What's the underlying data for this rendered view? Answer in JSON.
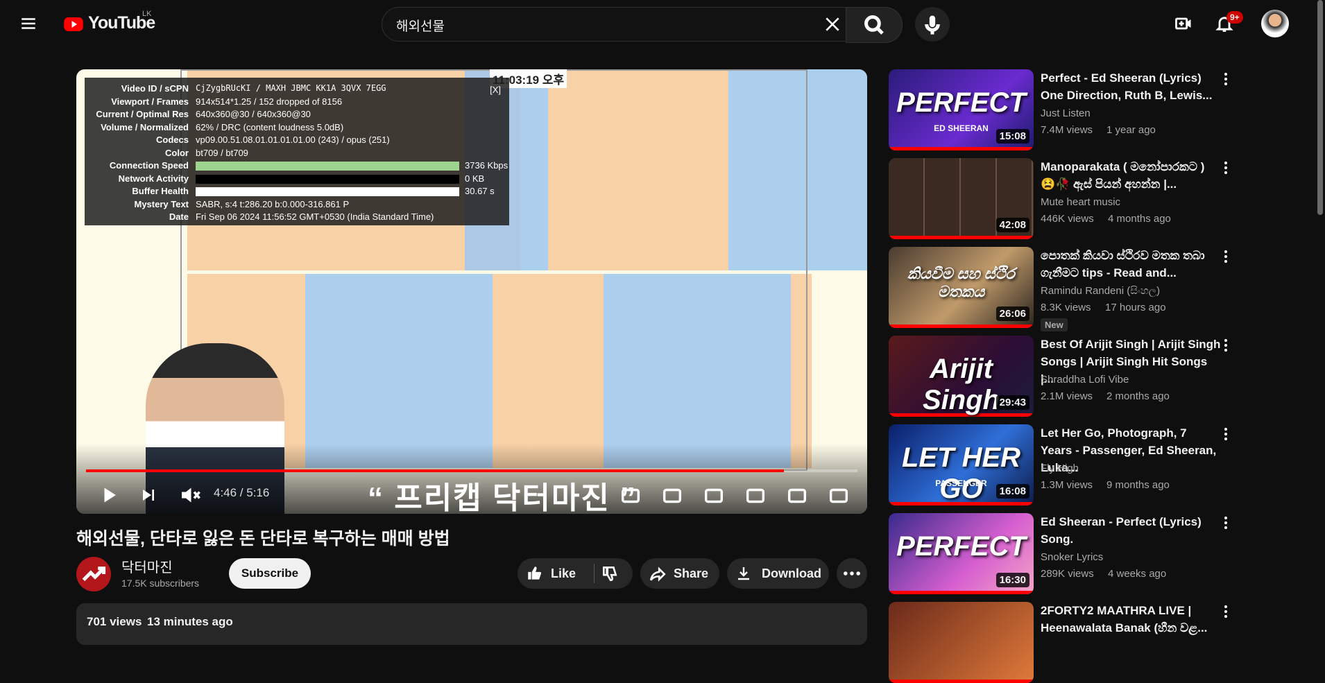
{
  "header": {
    "logo": "YouTube",
    "country": "LK",
    "search_query": "해외선물",
    "notifications": "9+"
  },
  "player": {
    "clock": "11:03:19 오후",
    "overlay_text": "“ 프리캡 닥터마진 ”",
    "time": "4:46 / 5:16",
    "close": "[X]",
    "stats": [
      [
        "Video ID / sCPN",
        "CjZygbRUcKI / MAXH JBMC KK1A 3QVX 7EGG"
      ],
      [
        "Viewport / Frames",
        "914x514*1.25 / 152 dropped of 8156"
      ],
      [
        "Current / Optimal Res",
        "640x360@30 / 640x360@30"
      ],
      [
        "Volume / Normalized",
        "62% / DRC (content loudness 5.0dB)"
      ],
      [
        "Codecs",
        "vp09.00.51.08.01.01.01.01.00 (243) / opus (251)"
      ],
      [
        "Color",
        "bt709 / bt709"
      ],
      [
        "Connection Speed",
        "3736 Kbps"
      ],
      [
        "Network Activity",
        "0 KB"
      ],
      [
        "Buffer Health",
        "30.67 s"
      ],
      [
        "Mystery Text",
        "SABR, s:4 t:286.20 b:0.000-316.861 P"
      ],
      [
        "Date",
        "Fri Sep 06 2024 11:56:52 GMT+0530 (India Standard Time)"
      ]
    ]
  },
  "video": {
    "title": "해외선물, 단타로 잃은 돈 단타로 복구하는 매매 방법",
    "channel": "닥터마진",
    "subscribers": "17.5K subscribers",
    "subscribe": "Subscribe",
    "like": "Like",
    "share": "Share",
    "download": "Download",
    "views": "701 views",
    "age": "13 minutes ago"
  },
  "sidebar": [
    {
      "title": "Perfect - Ed Sheeran (Lyrics) One Direction, Ruth B, Lewis...",
      "channel": "Just Listen",
      "views": "7.4M views",
      "age": "1 year ago",
      "duration": "15:08",
      "thumb_text": "PERFECT",
      "thumb_sub": "ED SHEERAN"
    },
    {
      "title": "Manoparakata ( මනෝපාරකට ) 😫🥀 ඇස් පියන් අහන්න |...",
      "channel": "Mute heart music",
      "views": "446K views",
      "age": "4 months ago",
      "duration": "42:08"
    },
    {
      "title": "පොතක් කියවා ස්ථිරව මතක තබා ගැනීමට tips - Read and...",
      "channel": "Ramindu Randeni (සිංහල)",
      "views": "8.3K views",
      "age": "17 hours ago",
      "duration": "26:06",
      "badge": "New",
      "thumb_text": "කියවීම සහ ස්ථිර මතකය"
    },
    {
      "title": "Best Of Arijit Singh | Arijit Singh Songs | Arijit Singh Hit Songs |...",
      "channel": "Shraddha Lofi Vibe",
      "views": "2.1M views",
      "age": "2 months ago",
      "duration": "29:43",
      "thumb_text": "Arijit Singh"
    },
    {
      "title": "Let Her Go, Photograph, 7 Years - Passenger, Ed Sheeran, Luka...",
      "channel": "Fly High",
      "views": "1.3M views",
      "age": "9 months ago",
      "duration": "16:08",
      "thumb_text": "LET HER GO",
      "thumb_sub": "PASSENGER"
    },
    {
      "title": "Ed Sheeran - Perfect (Lyrics) Song.",
      "channel": "Snoker Lyrics",
      "views": "289K views",
      "age": "4 weeks ago",
      "duration": "16:30",
      "thumb_text": "PERFECT"
    },
    {
      "title": "2FORTY2 MAATHRA LIVE | Heenawalata Banak (හීන වළ..."
    }
  ]
}
